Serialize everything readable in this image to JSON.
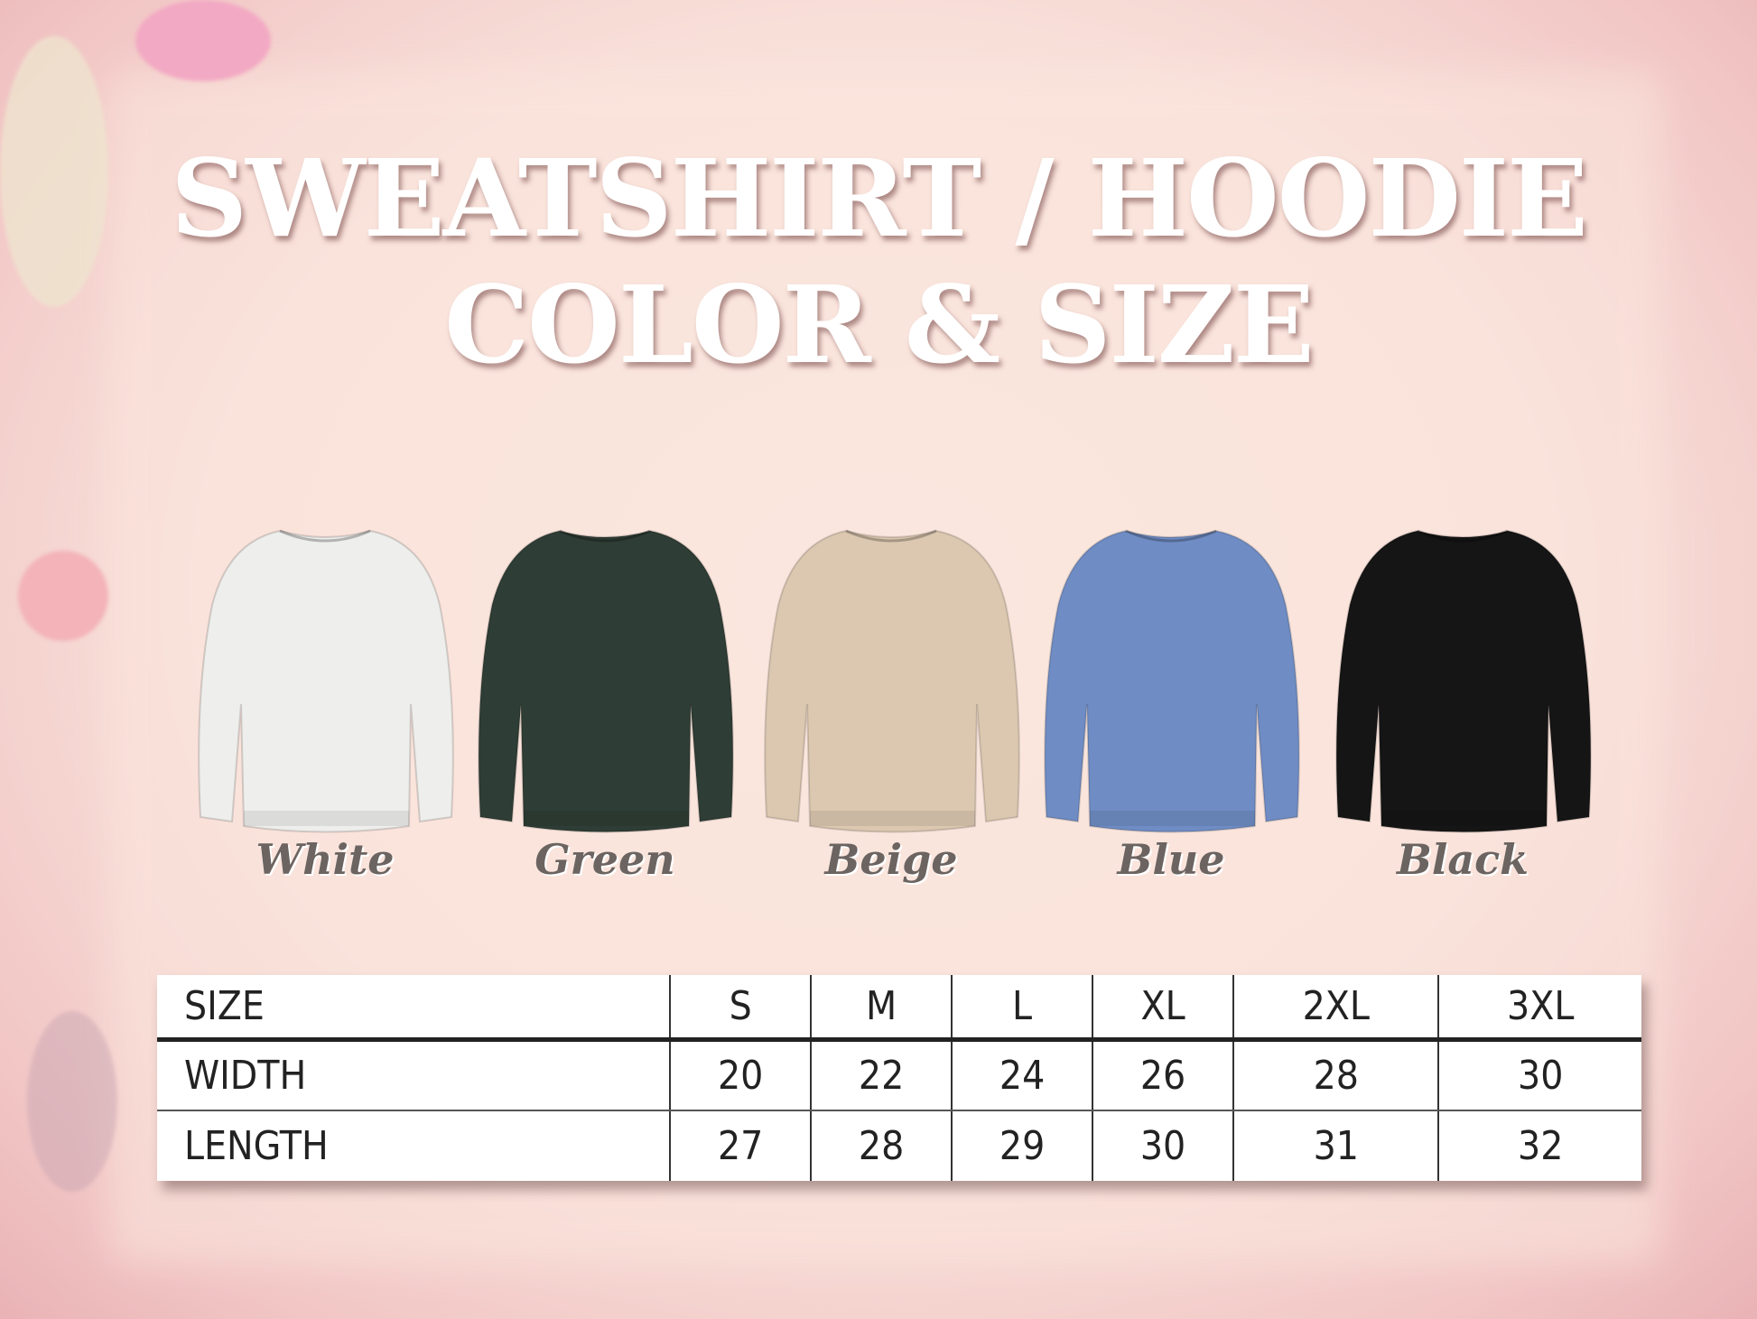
{
  "title": {
    "line1": "SWEATSHIRT / HOODIE",
    "line2": "COLOR & SIZE"
  },
  "colors": [
    {
      "name": "White",
      "hex": "#eeeeec"
    },
    {
      "name": "Green",
      "hex": "#2e3d35"
    },
    {
      "name": "Beige",
      "hex": "#dcc8b0"
    },
    {
      "name": "Blue",
      "hex": "#6f8cc4"
    },
    {
      "name": "Black",
      "hex": "#151515"
    }
  ],
  "size_table": {
    "header": [
      "SIZE",
      "S",
      "M",
      "L",
      "XL",
      "2XL",
      "3XL"
    ],
    "rows": [
      [
        "WIDTH",
        "20",
        "22",
        "24",
        "26",
        "28",
        "30"
      ],
      [
        "LENGTH",
        "27",
        "28",
        "29",
        "30",
        "31",
        "32"
      ]
    ]
  }
}
